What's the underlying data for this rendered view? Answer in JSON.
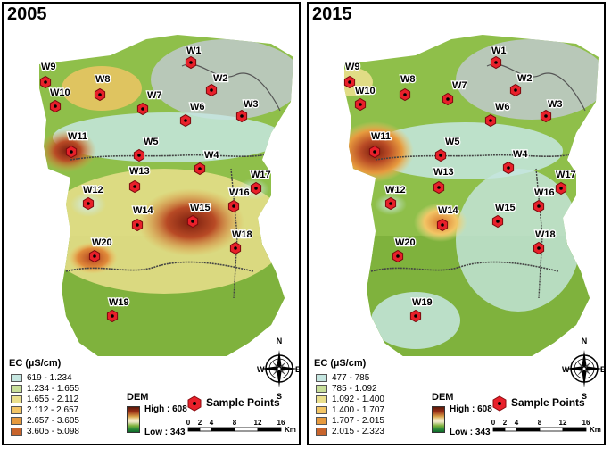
{
  "maps": [
    {
      "year": "2005",
      "ec_title": "EC (µS/cm)",
      "ec_classes": [
        {
          "label": "619 - 1.234",
          "color": "#c5e6e0"
        },
        {
          "label": "1.234 - 1.655",
          "color": "#c8df9a"
        },
        {
          "label": "1.655 - 2.112",
          "color": "#eadf8c"
        },
        {
          "label": "2.112 - 2.657",
          "color": "#f3c565"
        },
        {
          "label": "2.657 - 3.605",
          "color": "#e79a3e"
        },
        {
          "label": "3.605 - 5.098",
          "color": "#c8642c"
        }
      ]
    },
    {
      "year": "2015",
      "ec_title": "EC (µS/cm)",
      "ec_classes": [
        {
          "label": "477 - 785",
          "color": "#c5e6e0"
        },
        {
          "label": "785 - 1.092",
          "color": "#c8df9a"
        },
        {
          "label": "1.092 - 1.400",
          "color": "#eadf8c"
        },
        {
          "label": "1.400 - 1.707",
          "color": "#f3c565"
        },
        {
          "label": "1.707 - 2.015",
          "color": "#e79a3e"
        },
        {
          "label": "2.015 - 2.323",
          "color": "#c8642c"
        }
      ]
    }
  ],
  "legend": {
    "dem_title": "DEM",
    "dem_high": "High : 608",
    "dem_low": "Low : 343",
    "sample_points_label": "Sample Points",
    "scale_ticks": [
      "0",
      "2",
      "4",
      "8",
      "12",
      "16"
    ],
    "scale_unit": "Km"
  },
  "compass": {
    "n": "N",
    "s": "S",
    "e": "E",
    "w": "W"
  },
  "wells": [
    "W1",
    "W2",
    "W3",
    "W4",
    "W5",
    "W6",
    "W7",
    "W8",
    "W9",
    "W10",
    "W11",
    "W12",
    "W13",
    "W14",
    "W15",
    "W16",
    "W17",
    "W18",
    "W19",
    "W20"
  ],
  "colors": {
    "marker": "#e8202a",
    "base": "#8fbf4a",
    "contour": "#444444"
  }
}
